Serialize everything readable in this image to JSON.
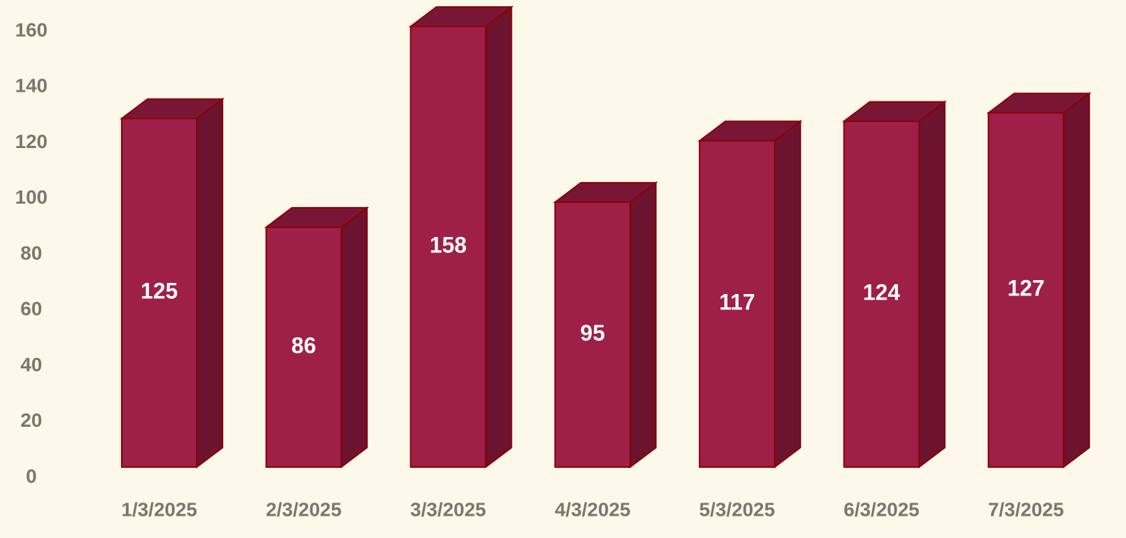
{
  "chart_data": {
    "type": "bar3d",
    "categories": [
      "1/3/2025",
      "2/3/2025",
      "3/3/2025",
      "4/3/2025",
      "5/3/2025",
      "6/3/2025",
      "7/3/2025"
    ],
    "values": [
      125,
      86,
      158,
      95,
      117,
      124,
      127
    ],
    "color": "#9e1f47",
    "side_color": "#6b132f",
    "top_color": "#7a1635",
    "edge_color": "#8b0000",
    "ylim": [
      0,
      160
    ],
    "yticks": [
      0,
      20,
      40,
      60,
      80,
      100,
      120,
      140,
      160
    ],
    "grid": false
  }
}
